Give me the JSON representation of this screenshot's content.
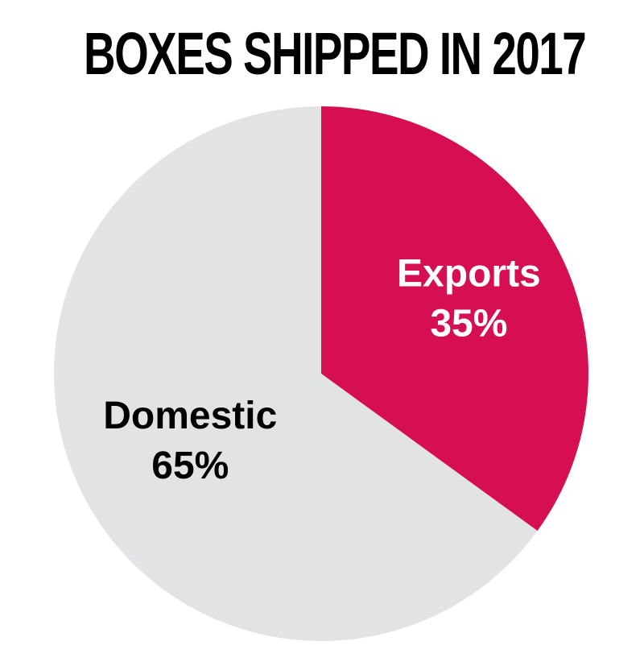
{
  "chart_data": {
    "type": "pie",
    "title": "BOXES SHIPPED IN 2017",
    "slices": [
      {
        "label": "Exports",
        "value": 35,
        "value_label": "35%",
        "color": "#d50f52",
        "text_color": "#ffffff"
      },
      {
        "label": "Domestic",
        "value": 65,
        "value_label": "65%",
        "color": "#e2e3e5",
        "text_color": "#000000"
      }
    ]
  }
}
